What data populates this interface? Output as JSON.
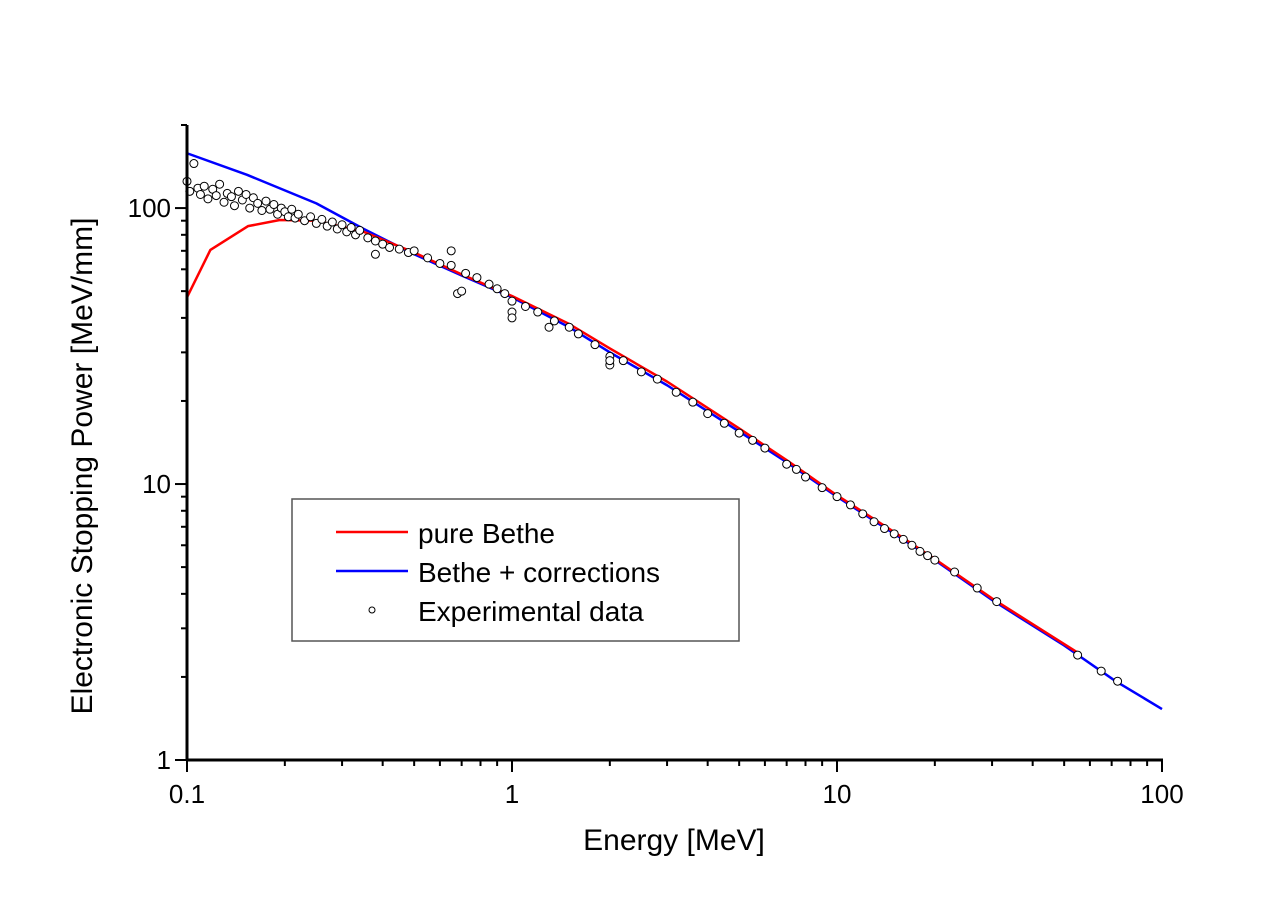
{
  "chart_data": {
    "type": "line",
    "title": "",
    "xlabel": "Energy [MeV]",
    "ylabel": "Electronic Stopping Power [MeV/mm]",
    "xscale": "log",
    "yscale": "log",
    "xlim": [
      0.1,
      100
    ],
    "ylim": [
      1,
      200
    ],
    "xticks": [
      {
        "v": 0.1,
        "label": "0.1"
      },
      {
        "v": 1,
        "label": "1"
      },
      {
        "v": 10,
        "label": "10"
      },
      {
        "v": 100,
        "label": "100"
      }
    ],
    "yticks": [
      {
        "v": 1,
        "label": "1"
      },
      {
        "v": 10,
        "label": "10"
      },
      {
        "v": 100,
        "label": "100"
      }
    ],
    "grid": false,
    "legend_placement": "center-left",
    "series": [
      {
        "name": "pure Bethe",
        "kind": "line",
        "color": "#ff0000",
        "points": [
          [
            0.1,
            47.5
          ],
          [
            0.118,
            70.5
          ],
          [
            0.154,
            86
          ],
          [
            0.193,
            90.5
          ],
          [
            0.25,
            90
          ],
          [
            0.35,
            82
          ],
          [
            0.5,
            69
          ],
          [
            0.7,
            57.5
          ],
          [
            1,
            48
          ],
          [
            1.5,
            38
          ],
          [
            2,
            31
          ],
          [
            3,
            23.5
          ],
          [
            5,
            15.9
          ],
          [
            7,
            12.2
          ],
          [
            10,
            9.1
          ],
          [
            15,
            6.7
          ],
          [
            20,
            5.35
          ],
          [
            30,
            3.85
          ],
          [
            55,
            2.45
          ]
        ]
      },
      {
        "name": "Bethe + corrections",
        "kind": "line",
        "color": "#0000ff",
        "points": [
          [
            0.1,
            158
          ],
          [
            0.153,
            132
          ],
          [
            0.25,
            104
          ],
          [
            0.35,
            84
          ],
          [
            0.5,
            68
          ],
          [
            0.7,
            57
          ],
          [
            1,
            47.5
          ],
          [
            1.5,
            37
          ],
          [
            2,
            30
          ],
          [
            3,
            22.8
          ],
          [
            5,
            15.5
          ],
          [
            7,
            12
          ],
          [
            10,
            9
          ],
          [
            15,
            6.6
          ],
          [
            20,
            5.3
          ],
          [
            30,
            3.8
          ],
          [
            50,
            2.6
          ],
          [
            72,
            1.93
          ],
          [
            100,
            1.53
          ]
        ]
      },
      {
        "name": "Experimental data",
        "kind": "scatter",
        "color": "#000000",
        "points": [
          [
            0.1,
            125
          ],
          [
            0.102,
            115
          ],
          [
            0.105,
            145
          ],
          [
            0.108,
            118
          ],
          [
            0.11,
            112
          ],
          [
            0.113,
            120
          ],
          [
            0.116,
            108
          ],
          [
            0.12,
            117
          ],
          [
            0.123,
            111
          ],
          [
            0.126,
            122
          ],
          [
            0.13,
            105
          ],
          [
            0.133,
            113
          ],
          [
            0.137,
            110
          ],
          [
            0.14,
            102
          ],
          [
            0.144,
            115
          ],
          [
            0.148,
            107
          ],
          [
            0.152,
            112
          ],
          [
            0.156,
            100
          ],
          [
            0.16,
            109
          ],
          [
            0.165,
            104
          ],
          [
            0.17,
            98
          ],
          [
            0.175,
            106
          ],
          [
            0.18,
            99
          ],
          [
            0.185,
            103
          ],
          [
            0.19,
            95
          ],
          [
            0.195,
            100
          ],
          [
            0.2,
            97
          ],
          [
            0.205,
            93
          ],
          [
            0.21,
            99
          ],
          [
            0.215,
            92
          ],
          [
            0.22,
            95
          ],
          [
            0.23,
            90
          ],
          [
            0.24,
            93
          ],
          [
            0.25,
            88
          ],
          [
            0.26,
            91
          ],
          [
            0.27,
            86
          ],
          [
            0.28,
            89
          ],
          [
            0.29,
            84
          ],
          [
            0.3,
            87
          ],
          [
            0.31,
            82
          ],
          [
            0.32,
            85
          ],
          [
            0.33,
            80
          ],
          [
            0.34,
            83
          ],
          [
            0.36,
            78
          ],
          [
            0.38,
            76
          ],
          [
            0.38,
            68
          ],
          [
            0.4,
            74
          ],
          [
            0.42,
            72
          ],
          [
            0.45,
            71
          ],
          [
            0.48,
            69
          ],
          [
            0.5,
            70
          ],
          [
            0.55,
            66
          ],
          [
            0.6,
            63
          ],
          [
            0.65,
            62
          ],
          [
            0.65,
            70
          ],
          [
            0.68,
            49
          ],
          [
            0.7,
            50
          ],
          [
            0.72,
            58
          ],
          [
            0.78,
            56
          ],
          [
            0.85,
            53
          ],
          [
            0.9,
            51
          ],
          [
            0.95,
            49
          ],
          [
            1,
            46
          ],
          [
            1,
            42
          ],
          [
            1,
            40
          ],
          [
            1.1,
            44
          ],
          [
            1.2,
            42
          ],
          [
            1.3,
            37
          ],
          [
            1.35,
            39
          ],
          [
            1.5,
            37
          ],
          [
            1.6,
            35
          ],
          [
            1.8,
            32
          ],
          [
            2,
            29
          ],
          [
            2,
            27
          ],
          [
            2,
            28
          ],
          [
            2.2,
            28
          ],
          [
            2.5,
            25.5
          ],
          [
            2.8,
            24
          ],
          [
            3.2,
            21.5
          ],
          [
            3.6,
            19.8
          ],
          [
            4,
            18
          ],
          [
            4.5,
            16.6
          ],
          [
            5,
            15.3
          ],
          [
            5.5,
            14.4
          ],
          [
            6,
            13.5
          ],
          [
            7,
            11.8
          ],
          [
            7.5,
            11.3
          ],
          [
            8,
            10.6
          ],
          [
            9,
            9.7
          ],
          [
            10,
            9
          ],
          [
            11,
            8.4
          ],
          [
            12,
            7.8
          ],
          [
            13,
            7.3
          ],
          [
            14,
            6.9
          ],
          [
            15,
            6.6
          ],
          [
            16,
            6.3
          ],
          [
            17,
            6
          ],
          [
            18,
            5.7
          ],
          [
            19,
            5.5
          ],
          [
            20,
            5.3
          ],
          [
            23,
            4.8
          ],
          [
            27,
            4.2
          ],
          [
            31,
            3.75
          ],
          [
            55,
            2.4
          ],
          [
            65,
            2.1
          ],
          [
            73,
            1.93
          ]
        ]
      }
    ]
  }
}
